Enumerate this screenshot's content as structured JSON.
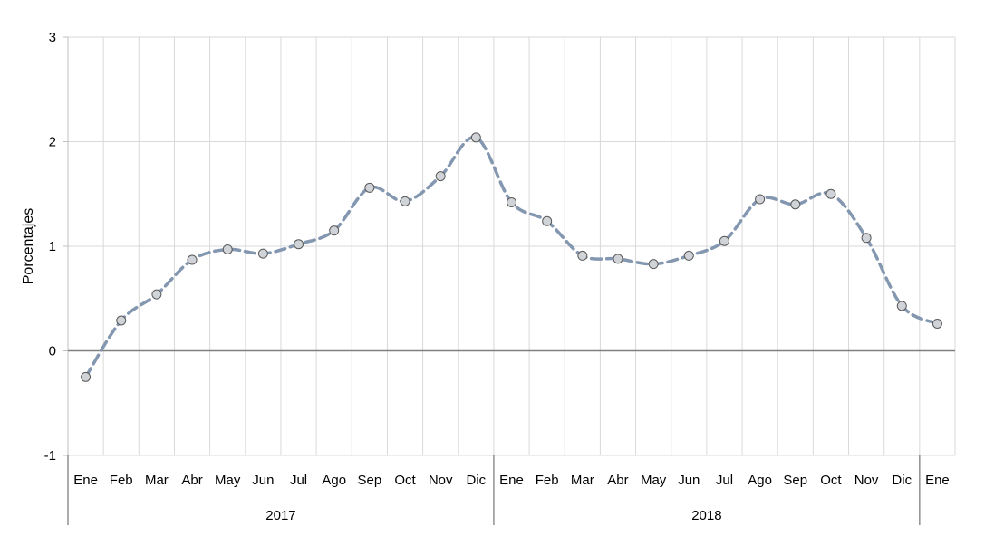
{
  "chart_data": {
    "type": "line",
    "title": "",
    "ylabel": "Porcentajes",
    "xlabel": "",
    "ylim": [
      -1,
      3
    ],
    "yticks": [
      -1,
      0,
      1,
      2,
      3
    ],
    "grid": true,
    "categories": [
      "Ene",
      "Feb",
      "Mar",
      "Abr",
      "May",
      "Jun",
      "Jul",
      "Ago",
      "Sep",
      "Oct",
      "Nov",
      "Dic",
      "Ene",
      "Feb",
      "Mar",
      "Abr",
      "May",
      "Jun",
      "Jul",
      "Ago",
      "Sep",
      "Oct",
      "Nov",
      "Dic",
      "Ene"
    ],
    "year_groups": [
      {
        "label": "2017",
        "start": 0,
        "end": 11
      },
      {
        "label": "2018",
        "start": 12,
        "end": 23
      }
    ],
    "series": [
      {
        "values": [
          -0.25,
          0.29,
          0.54,
          0.87,
          0.97,
          0.93,
          1.02,
          1.15,
          1.56,
          1.43,
          1.67,
          2.04,
          1.42,
          1.24,
          0.91,
          0.88,
          0.83,
          0.91,
          1.05,
          1.45,
          1.4,
          1.5,
          1.08,
          0.43,
          0.26
        ],
        "color": "#8497B0",
        "marker_fill": "#D0D3D8",
        "marker_stroke": "#595959"
      }
    ]
  }
}
